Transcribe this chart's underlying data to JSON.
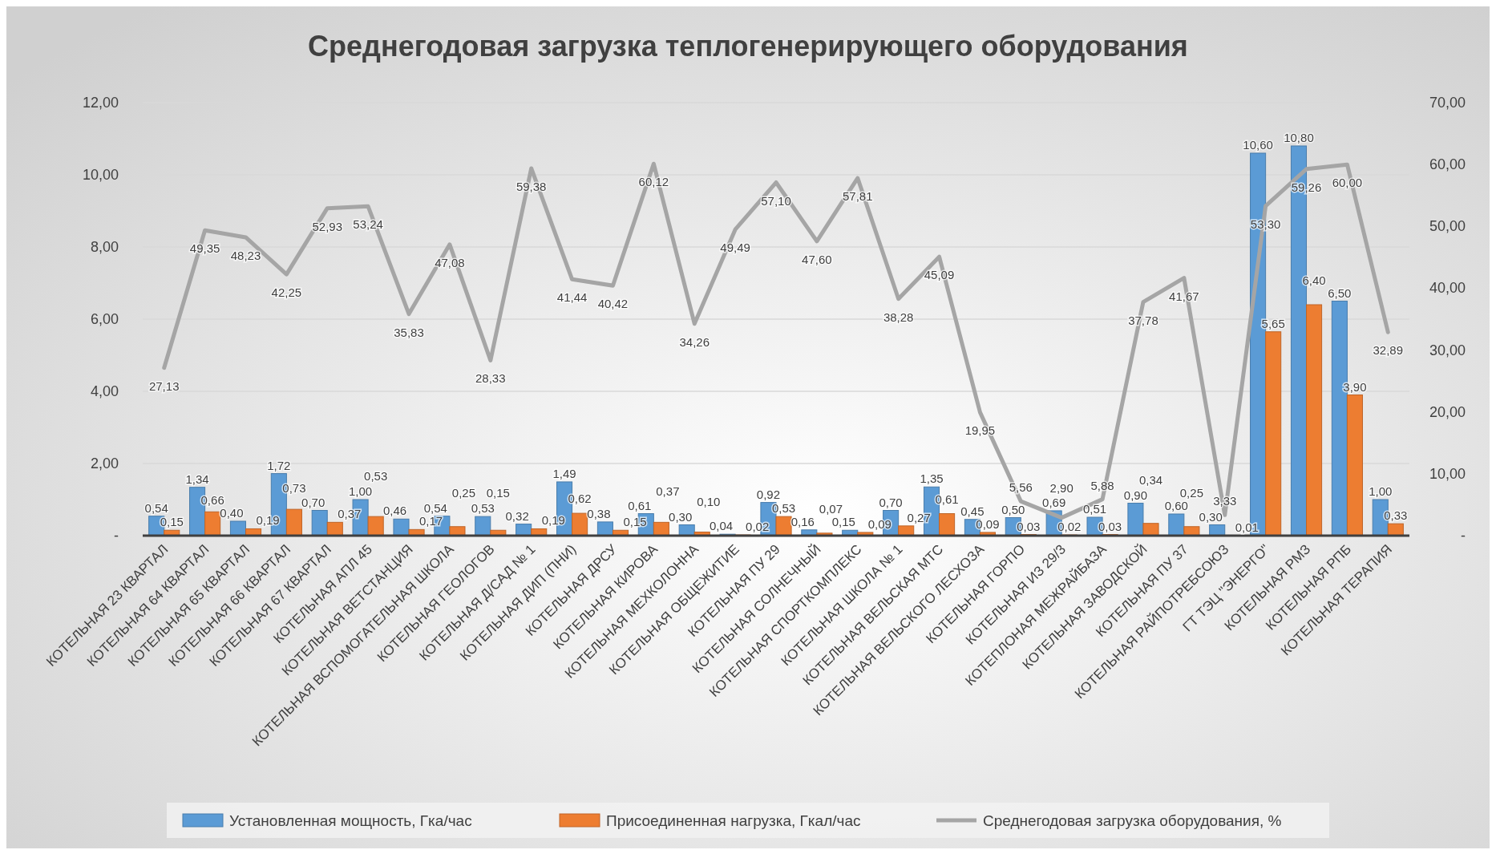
{
  "chart_data": {
    "type": "bar",
    "title": "Среднегодовая загрузка теплогенерирующего оборудования",
    "categories": [
      "КОТЕЛЬНАЯ 23 КВАРТАЛ",
      "КОТЕЛЬНАЯ 64 КВАРТАЛ",
      "КОТЕЛЬНАЯ 65 КВАРТАЛ",
      "КОТЕЛЬНАЯ 66 КВАРТАЛ",
      "КОТЕЛЬНАЯ 67 КВАРТАЛ",
      "КОТЕЛЬНАЯ АПЛ 45",
      "КОТЕЛЬНАЯ ВЕТСТАНЦИЯ",
      "КОТЕЛЬНАЯ ВСПОМОГАТЕЛЬНАЯ ШКОЛА",
      "КОТЕЛЬНАЯ ГЕОЛОГОВ",
      "КОТЕЛЬНАЯ Д/САД № 1",
      "КОТЕЛЬНАЯ ДИП (ПНИ)",
      "КОТЕЛЬНАЯ ДРСУ",
      "КОТЕЛЬНАЯ КИРОВА",
      "КОТЕЛЬНАЯ МЕХКОЛОННА",
      "КОТЕЛЬНАЯ ОБЩЕЖИТИЕ",
      "КОТЕЛЬНАЯ ПУ 29",
      "КОТЕЛЬНАЯ СОЛНЕЧНЫЙ",
      "КОТЕЛЬНАЯ СПОРТКОМПЛЕКС",
      "КОТЕЛЬНАЯ ШКОЛА № 1",
      "КОТЕЛЬНАЯ ВЕЛЬСКАЯ МТС",
      "КОТЕЛЬНАЯ ВЕЛЬСКОГО ЛЕСХОЗА",
      "КОТЕЛЬНАЯ ГОРПО",
      "КОТЕЛЬНАЯ ИЗ 29/3",
      "КОТЕПЛОНАЯ МЕЖРАЙБАЗА",
      "КОТЕЛЬНАЯ ЗАВОДСКОЙ",
      "КОТЕЛЬНАЯ ПУ 37",
      "КОТЕЛЬНАЯ РАЙПОТРЕБСОЮЗ",
      "ГТ ТЭЦ \"ЭНЕРГО\"",
      "КОТЕЛЬНАЯ РМЗ",
      "КОТЕЛЬНАЯ РПБ",
      "КОТЕЛЬНАЯ ТЕРАПИЯ"
    ],
    "series": [
      {
        "name": "Установленная мощность, Гка/час",
        "color": "#5b9bd5",
        "values": [
          0.54,
          1.34,
          0.4,
          1.72,
          0.7,
          1.0,
          0.46,
          0.54,
          0.53,
          0.32,
          1.49,
          0.38,
          0.61,
          0.3,
          0.04,
          0.92,
          0.16,
          0.15,
          0.7,
          1.35,
          0.45,
          0.5,
          0.69,
          0.51,
          0.9,
          0.6,
          0.3,
          10.6,
          10.8,
          6.5,
          1.0
        ],
        "value_labels": [
          "0,54",
          "1,34",
          "0,40",
          "1,72",
          "0,70",
          "1,00",
          "0,46",
          "0,54",
          "0,53",
          "0,32",
          "1,49",
          "0,38",
          "0,61",
          "0,30",
          "0,04",
          "0,92",
          "0,16",
          "0,15",
          "0,70",
          "1,35",
          "0,45",
          "0,50",
          "0,69",
          "0,51",
          "0,90",
          "0,60",
          "0,30",
          "10,60",
          "10,80",
          "6,50",
          "1,00"
        ]
      },
      {
        "name": "Присоединенная нагрузка, Гкал/час",
        "color": "#ed7d31",
        "values": [
          0.15,
          0.66,
          0.19,
          0.73,
          0.37,
          0.53,
          0.17,
          0.25,
          0.15,
          0.19,
          0.62,
          0.15,
          0.37,
          0.1,
          0.02,
          0.53,
          0.07,
          0.09,
          0.27,
          0.61,
          0.09,
          0.03,
          0.02,
          0.03,
          0.34,
          0.25,
          0.01,
          5.65,
          6.4,
          3.9,
          0.33
        ],
        "value_labels": [
          "0,15",
          "0,66",
          "0,19",
          "0,73",
          "0,37",
          "0,53",
          "0,17",
          "0,25",
          "0,15",
          "0,19",
          "0,62",
          "0,15",
          "0,37",
          "0,10",
          "0,02",
          "0,53",
          "0,07",
          "0,09",
          "0,27",
          "0,61",
          "0,09",
          "0,03",
          "0,02",
          "0,03",
          "0,34",
          "0,25",
          "0,01",
          "5,65",
          "6,40",
          "3,90",
          "0,33"
        ]
      },
      {
        "name": "Среднегодовая загрузка оборудования, %",
        "color": "#a5a5a5",
        "type": "line",
        "axis": "y2",
        "values": [
          27.13,
          49.35,
          48.23,
          42.25,
          52.93,
          53.24,
          35.83,
          47.08,
          28.33,
          59.38,
          41.44,
          40.42,
          60.12,
          34.26,
          49.49,
          57.1,
          47.6,
          57.81,
          38.28,
          45.09,
          19.95,
          5.56,
          2.9,
          5.88,
          37.78,
          41.67,
          3.33,
          53.3,
          59.26,
          60.0,
          32.89
        ],
        "value_labels": [
          "27,13",
          "49,35",
          "48,23",
          "42,25",
          "52,93",
          "53,24",
          "35,83",
          "47,08",
          "28,33",
          "59,38",
          "41,44",
          "40,42",
          "60,12",
          "34,26",
          "49,49",
          "57,10",
          "47,60",
          "57,81",
          "38,28",
          "45,09",
          "19,95",
          "5,56",
          "2,90",
          "5,88",
          "37,78",
          "41,67",
          "3,33",
          "53,30",
          "59,26",
          "60,00",
          "32,89"
        ]
      }
    ],
    "ylim": [
      0,
      12
    ],
    "yticks": [
      {
        "value": 0,
        "label": "-"
      },
      {
        "value": 2,
        "label": "2,00"
      },
      {
        "value": 4,
        "label": "4,00"
      },
      {
        "value": 6,
        "label": "6,00"
      },
      {
        "value": 8,
        "label": "8,00"
      },
      {
        "value": 10,
        "label": "10,00"
      },
      {
        "value": 12,
        "label": "12,00"
      }
    ],
    "y2lim": [
      0,
      70
    ],
    "y2ticks": [
      {
        "value": 0,
        "label": "-"
      },
      {
        "value": 10,
        "label": "10,00"
      },
      {
        "value": 20,
        "label": "20,00"
      },
      {
        "value": 30,
        "label": "30,00"
      },
      {
        "value": 40,
        "label": "40,00"
      },
      {
        "value": 50,
        "label": "50,00"
      },
      {
        "value": 60,
        "label": "60,00"
      },
      {
        "value": 70,
        "label": "70,00"
      }
    ],
    "grid": "y",
    "legend": "bottom",
    "marker": "none",
    "line_style": "solid"
  }
}
